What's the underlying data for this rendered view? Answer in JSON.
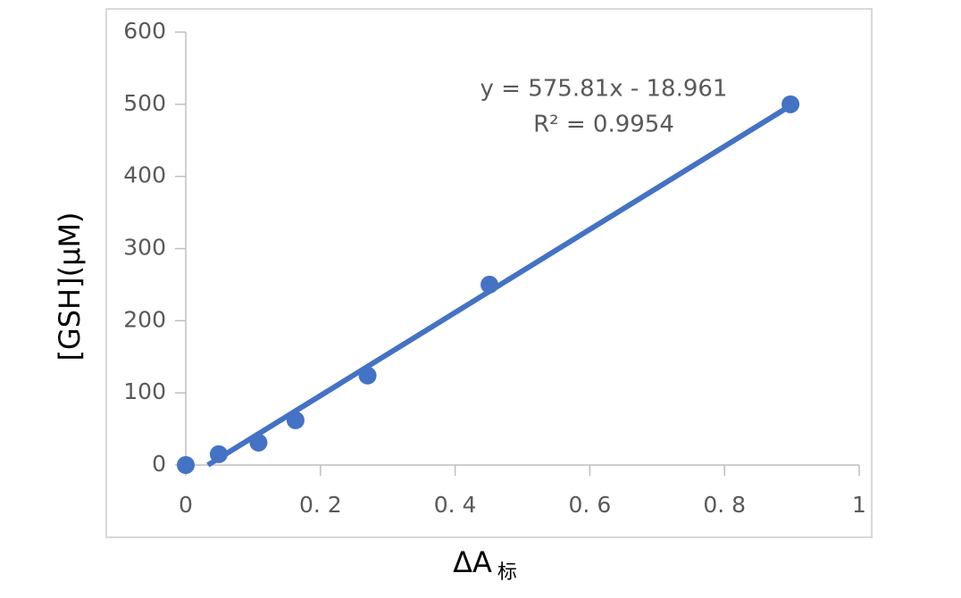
{
  "chart_data": {
    "type": "scatter",
    "x_label": "ΔA",
    "x_label_sub": "标",
    "y_label": "[GSH](μM)",
    "x": [
      0,
      0.049,
      0.108,
      0.163,
      0.27,
      0.451,
      0.898
    ],
    "values": [
      0,
      15,
      31,
      62,
      124,
      250,
      500
    ],
    "color": "#4472c4",
    "trendline": {
      "slope": 575.81,
      "intercept": -18.961,
      "equation": "y = 575.81x - 18.961",
      "r2": "R² = 0.9954"
    },
    "xlim": [
      0,
      1
    ],
    "ylim": [
      0,
      600
    ],
    "xticks": [
      0,
      {
        "value": 0.2,
        "label": "0. 2"
      },
      {
        "value": 0.4,
        "label": "0. 4"
      },
      {
        "value": 0.6,
        "label": "0. 6"
      },
      {
        "value": 0.8,
        "label": "0. 8"
      },
      1
    ],
    "yticks": [
      0,
      100,
      200,
      300,
      400,
      500,
      600
    ]
  }
}
